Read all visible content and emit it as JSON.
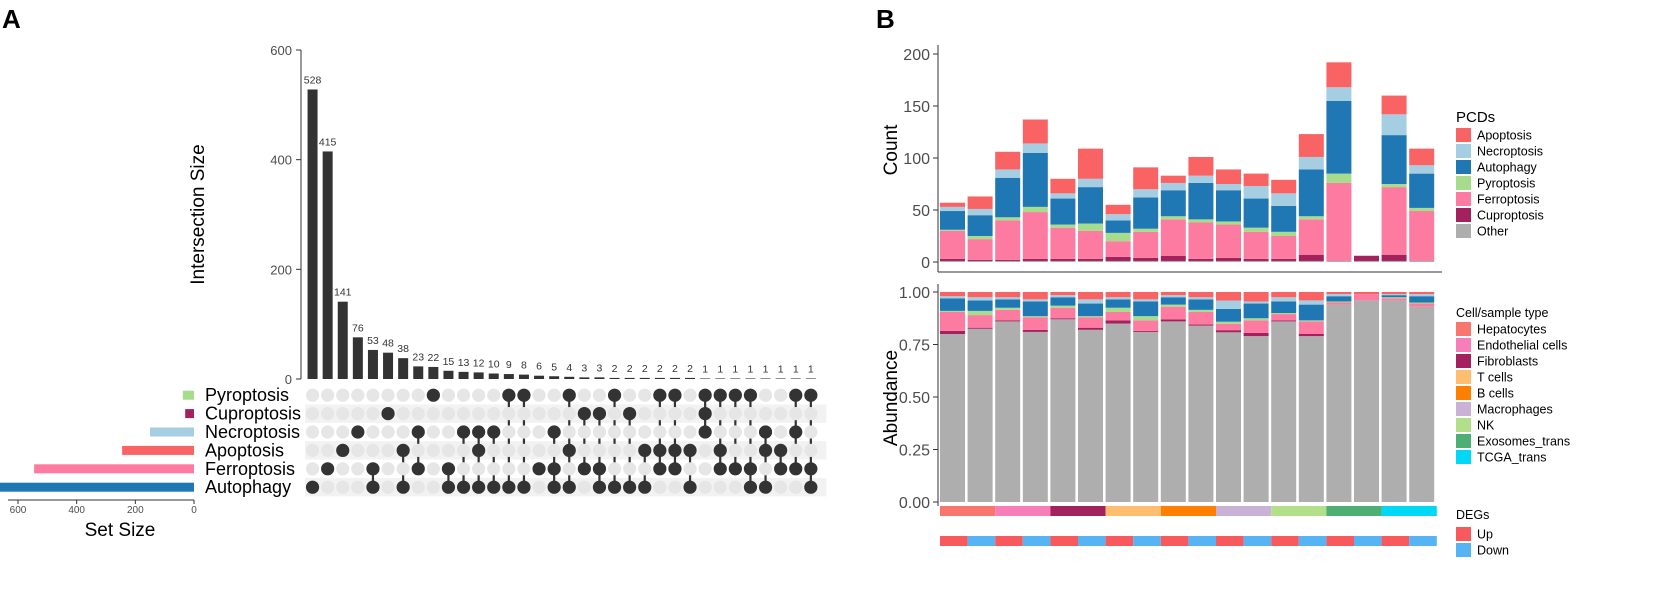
{
  "panels": {
    "a_label": "A",
    "b_label": "B"
  },
  "colors": {
    "bar_dark": "#333333",
    "dot_active": "#333333",
    "dot_inactive": "#e6e6e6",
    "stripe": "#f2f2f2",
    "Pyroptosis": "#a6dc8b",
    "Cuproptosis": "#a3215c",
    "Necroptosis": "#a6cee3",
    "Apoptosis": "#fa6363",
    "Ferroptosis": "#fd7aa0",
    "Autophagy": "#1f78b4",
    "Other": "#aeaeae"
  },
  "chart_data": [
    {
      "id": "upset",
      "type": "bar",
      "subtype": "upset",
      "ylabel": "Intersection Size",
      "ylim": [
        0,
        600
      ],
      "yticks": [
        "0",
        "200",
        "400",
        "600"
      ],
      "values": [
        528,
        415,
        141,
        76,
        53,
        48,
        38,
        23,
        22,
        15,
        13,
        12,
        10,
        9,
        8,
        6,
        5,
        4,
        3,
        3,
        2,
        2,
        2,
        2,
        2,
        2,
        1,
        1,
        1,
        1,
        1,
        1,
        1,
        1
      ],
      "sets": [
        "Pyroptosis",
        "Cuproptosis",
        "Necroptosis",
        "Apoptosis",
        "Ferroptosis",
        "Autophagy"
      ],
      "memberships": [
        [
          "Autophagy"
        ],
        [
          "Ferroptosis"
        ],
        [
          "Apoptosis"
        ],
        [
          "Necroptosis"
        ],
        [
          "Ferroptosis",
          "Autophagy"
        ],
        [
          "Cuproptosis"
        ],
        [
          "Apoptosis",
          "Autophagy"
        ],
        [
          "Necroptosis",
          "Ferroptosis"
        ],
        [
          "Pyroptosis"
        ],
        [
          "Ferroptosis",
          "Autophagy"
        ],
        [
          "Necroptosis",
          "Autophagy"
        ],
        [
          "Necroptosis",
          "Apoptosis",
          "Autophagy"
        ],
        [
          "Necroptosis",
          "Autophagy"
        ],
        [
          "Pyroptosis",
          "Autophagy"
        ],
        [
          "Pyroptosis",
          "Autophagy"
        ],
        [
          "Ferroptosis"
        ],
        [
          "Necroptosis",
          "Ferroptosis",
          "Autophagy"
        ],
        [
          "Pyroptosis",
          "Apoptosis",
          "Autophagy"
        ],
        [
          "Cuproptosis",
          "Ferroptosis"
        ],
        [
          "Cuproptosis",
          "Ferroptosis",
          "Autophagy"
        ],
        [
          "Pyroptosis",
          "Autophagy"
        ],
        [
          "Cuproptosis",
          "Autophagy"
        ],
        [
          "Apoptosis",
          "Autophagy"
        ],
        [
          "Pyroptosis",
          "Apoptosis",
          "Ferroptosis"
        ],
        [
          "Pyroptosis",
          "Apoptosis",
          "Ferroptosis"
        ],
        [
          "Apoptosis",
          "Autophagy"
        ],
        [
          "Pyroptosis",
          "Cuproptosis",
          "Necroptosis"
        ],
        [
          "Pyroptosis",
          "Apoptosis",
          "Ferroptosis"
        ],
        [
          "Pyroptosis",
          "Ferroptosis"
        ],
        [
          "Pyroptosis",
          "Ferroptosis",
          "Autophagy"
        ],
        [
          "Necroptosis",
          "Apoptosis",
          "Autophagy"
        ],
        [
          "Apoptosis",
          "Ferroptosis"
        ],
        [
          "Pyroptosis",
          "Necroptosis",
          "Ferroptosis"
        ],
        [
          "Pyroptosis",
          "Ferroptosis",
          "Autophagy"
        ]
      ],
      "set_size": {
        "xlabel": "Set Size",
        "xlim": [
          0,
          750
        ],
        "xticks": [
          "600",
          "400",
          "200",
          "0"
        ],
        "values": {
          "Pyroptosis": 38,
          "Cuproptosis": 30,
          "Necroptosis": 150,
          "Apoptosis": 245,
          "Ferroptosis": 545,
          "Autophagy": 710
        }
      }
    },
    {
      "id": "pcd_count",
      "type": "bar",
      "subtype": "stacked",
      "ylabel": "Count",
      "ylim": [
        0,
        210
      ],
      "yticks": [
        "0",
        "50",
        "100",
        "150",
        "200"
      ],
      "legend_title": "PCDs",
      "legend": [
        "Apoptosis",
        "Necroptosis",
        "Autophagy",
        "Pyroptosis",
        "Ferroptosis",
        "Cuproptosis",
        "Other"
      ],
      "stack_order": [
        "Other",
        "Cuproptosis",
        "Ferroptosis",
        "Pyroptosis",
        "Autophagy",
        "Necroptosis",
        "Apoptosis"
      ],
      "series": [
        {
          "name": "Other",
          "values": [
            1,
            1,
            1,
            1,
            1,
            1,
            1,
            1,
            1,
            1,
            1,
            1,
            1,
            1,
            1,
            1,
            1,
            1
          ]
        },
        {
          "name": "Cuproptosis",
          "values": [
            2,
            1,
            1,
            2,
            2,
            2,
            4,
            3,
            5,
            2,
            3,
            2,
            2,
            6,
            0,
            5,
            6,
            0
          ]
        },
        {
          "name": "Ferroptosis",
          "values": [
            27,
            20,
            38,
            45,
            30,
            27,
            15,
            25,
            35,
            35,
            32,
            26,
            22,
            34,
            75,
            0,
            65,
            48
          ]
        },
        {
          "name": "Pyroptosis",
          "values": [
            1,
            3,
            3,
            5,
            3,
            7,
            8,
            3,
            3,
            3,
            3,
            4,
            4,
            3,
            9,
            0,
            3,
            3
          ]
        },
        {
          "name": "Autophagy",
          "values": [
            18,
            20,
            38,
            52,
            25,
            35,
            12,
            30,
            25,
            35,
            30,
            28,
            25,
            45,
            70,
            0,
            47,
            33
          ]
        },
        {
          "name": "Necroptosis",
          "values": [
            4,
            6,
            8,
            9,
            5,
            8,
            6,
            8,
            7,
            7,
            6,
            12,
            12,
            12,
            13,
            0,
            20,
            8
          ]
        },
        {
          "name": "Apoptosis",
          "values": [
            4,
            12,
            17,
            23,
            14,
            29,
            9,
            21,
            7,
            18,
            14,
            12,
            13,
            22,
            24,
            0,
            18,
            16
          ]
        }
      ]
    },
    {
      "id": "abundance",
      "type": "bar",
      "subtype": "stacked",
      "ylabel": "Abundance",
      "ylim": [
        0,
        1
      ],
      "yticks": [
        "0.00",
        "0.25",
        "0.50",
        "0.75",
        "1.00"
      ],
      "series": [
        {
          "name": "Other",
          "values": [
            0.8,
            0.825,
            0.86,
            0.81,
            0.87,
            0.82,
            0.85,
            0.81,
            0.86,
            0.84,
            0.8,
            0.79,
            0.86,
            0.79,
            0.94,
            0.96,
            0.96,
            0.93
          ]
        },
        {
          "name": "Cuproptosis",
          "values": [
            0.015,
            0.005,
            0.005,
            0.01,
            0.005,
            0.01,
            0.015,
            0.005,
            0.01,
            0.005,
            0.01,
            0.015,
            0.005,
            0.01,
            0,
            0,
            0,
            0
          ]
        },
        {
          "name": "Ferroptosis",
          "values": [
            0.09,
            0.06,
            0.05,
            0.06,
            0.05,
            0.05,
            0.04,
            0.05,
            0.06,
            0.06,
            0.03,
            0.06,
            0.03,
            0.06,
            0.01,
            0.03,
            0.01,
            0.015
          ]
        },
        {
          "name": "Pyroptosis",
          "values": [
            0.005,
            0.02,
            0.01,
            0.005,
            0.01,
            0.005,
            0.02,
            0.02,
            0.01,
            0.01,
            0.01,
            0.01,
            0.005,
            0.005,
            0.005,
            0,
            0.005,
            0.005
          ]
        },
        {
          "name": "Autophagy",
          "values": [
            0.06,
            0.05,
            0.04,
            0.07,
            0.04,
            0.06,
            0.04,
            0.07,
            0.035,
            0.05,
            0.06,
            0.07,
            0.055,
            0.075,
            0.025,
            0,
            0.01,
            0.03
          ]
        },
        {
          "name": "Necroptosis",
          "values": [
            0.01,
            0.015,
            0.01,
            0.01,
            0.01,
            0.02,
            0.01,
            0.01,
            0.01,
            0.01,
            0.04,
            0.01,
            0.02,
            0.02,
            0.01,
            0,
            0.005,
            0.01
          ]
        },
        {
          "name": "Apoptosis",
          "values": [
            0.02,
            0.025,
            0.025,
            0.035,
            0.015,
            0.035,
            0.025,
            0.035,
            0.015,
            0.025,
            0.04,
            0.045,
            0.025,
            0.04,
            0.01,
            0.01,
            0.01,
            0.01
          ]
        }
      ],
      "cell_legend_title": "Cell/sample type",
      "cell_types": [
        {
          "name": "Hepatocytes",
          "color": "#f8766d"
        },
        {
          "name": "Endothelial cells",
          "color": "#f77fb9"
        },
        {
          "name": "Fibroblasts",
          "color": "#a3215c"
        },
        {
          "name": "T cells",
          "color": "#fdbf6f"
        },
        {
          "name": "B cells",
          "color": "#ff7f00"
        },
        {
          "name": "Macrophages",
          "color": "#cab2d6"
        },
        {
          "name": "NK",
          "color": "#b2df8a"
        },
        {
          "name": "Exosomes_trans",
          "color": "#4daf73"
        },
        {
          "name": "TCGA_trans",
          "color": "#00d8f5"
        }
      ],
      "deg_legend_title": "DEGs",
      "deg_types": [
        {
          "name": "Up",
          "color": "#f8595d"
        },
        {
          "name": "Down",
          "color": "#56b4f5"
        }
      ]
    }
  ]
}
